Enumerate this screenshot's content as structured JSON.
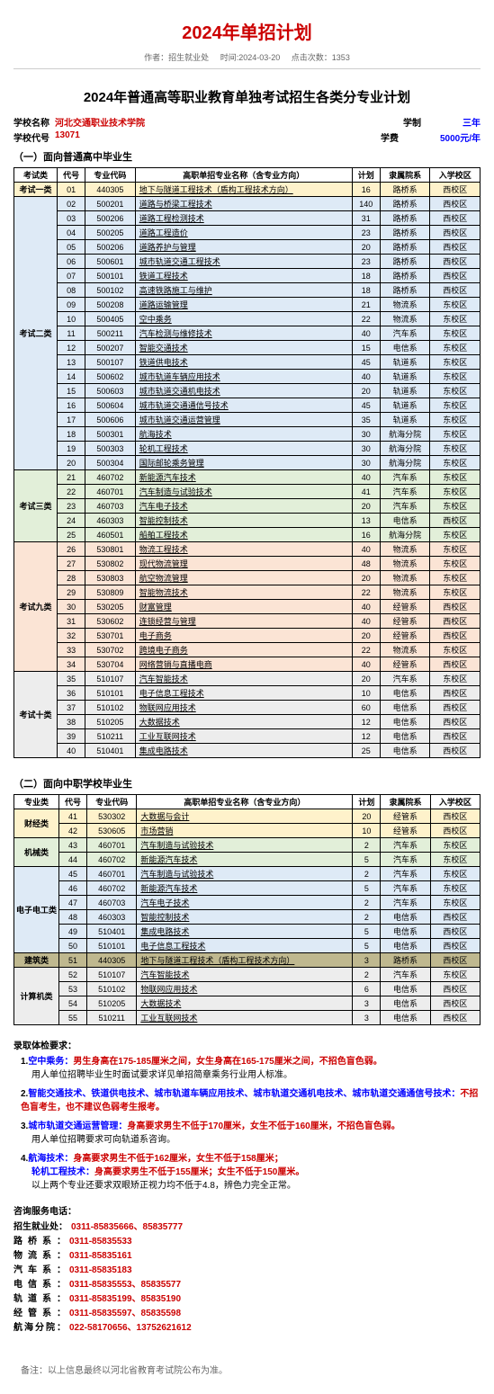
{
  "page_title": "2024年单招计划",
  "meta": {
    "author_lbl": "作者：",
    "author": "招生就业处",
    "time_lbl": "时间:",
    "time": "2024-03-20",
    "hits_lbl": "点击次数：",
    "hits": "1353"
  },
  "subtitle": "2024年普通高等职业教育单独考试招生各类分专业计划",
  "school": {
    "name_lbl": "学校名称",
    "name": "河北交通职业技术学院",
    "code_lbl": "学校代号",
    "code": "13071",
    "years_lbl": "学制",
    "years": "三年",
    "fee_lbl": "学费",
    "fee": "5000元/年"
  },
  "section1_title": "（一）面向普通高中毕业生",
  "section2_title": "（二）面向中职学校毕业生",
  "headers1": [
    "考试类",
    "代号",
    "专业代码",
    "高职单招专业名称（含专业方向）",
    "计划",
    "隶属院系",
    "入学校区"
  ],
  "headers2": [
    "专业类",
    "代号",
    "专业代码",
    "高职单招专业名称（含专业方向）",
    "计划",
    "隶属院系",
    "入学校区"
  ],
  "t1": [
    {
      "g": "考试一类",
      "c": "c-yellow",
      "r": [
        [
          "01",
          "440305",
          "地下与隧道工程技术（盾构工程技术方向）",
          "16",
          "路桥系",
          "西校区"
        ]
      ]
    },
    {
      "g": "考试二类",
      "c": "c-blue",
      "r": [
        [
          "02",
          "500201",
          "道路与桥梁工程技术",
          "140",
          "路桥系",
          "西校区"
        ],
        [
          "03",
          "500206",
          "道路工程检测技术",
          "31",
          "路桥系",
          "西校区"
        ],
        [
          "04",
          "500205",
          "道路工程造价",
          "23",
          "路桥系",
          "西校区"
        ],
        [
          "05",
          "500206",
          "道路养护与管理",
          "20",
          "路桥系",
          "西校区"
        ],
        [
          "06",
          "500601",
          "城市轨道交通工程技术",
          "23",
          "路桥系",
          "西校区"
        ],
        [
          "07",
          "500101",
          "铁道工程技术",
          "18",
          "路桥系",
          "西校区"
        ],
        [
          "08",
          "500102",
          "高速铁路施工与维护",
          "18",
          "路桥系",
          "西校区"
        ],
        [
          "09",
          "500208",
          "道路运输管理",
          "21",
          "物流系",
          "东校区"
        ],
        [
          "10",
          "500405",
          "空中乘务",
          "22",
          "物流系",
          "东校区"
        ],
        [
          "11",
          "500211",
          "汽车检测与维修技术",
          "40",
          "汽车系",
          "东校区"
        ],
        [
          "12",
          "500207",
          "智能交通技术",
          "15",
          "电信系",
          "东校区"
        ],
        [
          "13",
          "500107",
          "铁道供电技术",
          "45",
          "轨道系",
          "东校区"
        ],
        [
          "14",
          "500602",
          "城市轨道车辆应用技术",
          "40",
          "轨道系",
          "东校区"
        ],
        [
          "15",
          "500603",
          "城市轨道交通机电技术",
          "20",
          "轨道系",
          "东校区"
        ],
        [
          "16",
          "500604",
          "城市轨道交通通信号技术",
          "45",
          "轨道系",
          "东校区"
        ],
        [
          "17",
          "500606",
          "城市轨道交通运营管理",
          "35",
          "轨道系",
          "东校区"
        ],
        [
          "18",
          "500301",
          "航海技术",
          "30",
          "航海分院",
          "东校区"
        ],
        [
          "19",
          "500303",
          "轮机工程技术",
          "30",
          "航海分院",
          "东校区"
        ],
        [
          "20",
          "500304",
          "国际邮轮乘务管理",
          "30",
          "航海分院",
          "东校区"
        ]
      ]
    },
    {
      "g": "考试三类",
      "c": "c-green",
      "r": [
        [
          "21",
          "460702",
          "新能源汽车技术",
          "40",
          "汽车系",
          "东校区"
        ],
        [
          "22",
          "460701",
          "汽车制造与试验技术",
          "41",
          "汽车系",
          "东校区"
        ],
        [
          "23",
          "460703",
          "汽车电子技术",
          "20",
          "汽车系",
          "东校区"
        ],
        [
          "24",
          "460303",
          "智能控制技术",
          "13",
          "电信系",
          "西校区"
        ],
        [
          "25",
          "460501",
          "船舶工程技术",
          "16",
          "航海分院",
          "东校区"
        ]
      ]
    },
    {
      "g": "考试九类",
      "c": "c-pink",
      "r": [
        [
          "26",
          "530801",
          "物流工程技术",
          "40",
          "物流系",
          "东校区"
        ],
        [
          "27",
          "530802",
          "现代物流管理",
          "48",
          "物流系",
          "东校区"
        ],
        [
          "28",
          "530803",
          "航空物流管理",
          "20",
          "物流系",
          "东校区"
        ],
        [
          "29",
          "530809",
          "智能物流技术",
          "22",
          "物流系",
          "东校区"
        ],
        [
          "30",
          "530205",
          "财富管理",
          "40",
          "经管系",
          "西校区"
        ],
        [
          "31",
          "530602",
          "连锁经营与管理",
          "40",
          "经管系",
          "西校区"
        ],
        [
          "32",
          "530701",
          "电子商务",
          "20",
          "经管系",
          "西校区"
        ],
        [
          "33",
          "530702",
          "跨境电子商务",
          "22",
          "物流系",
          "东校区"
        ],
        [
          "34",
          "530704",
          "网络营销与直播电商",
          "40",
          "经管系",
          "西校区"
        ]
      ]
    },
    {
      "g": "考试十类",
      "c": "c-gray",
      "r": [
        [
          "35",
          "510107",
          "汽车智能技术",
          "20",
          "汽车系",
          "东校区"
        ],
        [
          "36",
          "510101",
          "电子信息工程技术",
          "10",
          "电信系",
          "西校区"
        ],
        [
          "37",
          "510102",
          "物联网应用技术",
          "60",
          "电信系",
          "西校区"
        ],
        [
          "38",
          "510205",
          "大数据技术",
          "12",
          "电信系",
          "西校区"
        ],
        [
          "39",
          "510211",
          "工业互联网技术",
          "12",
          "电信系",
          "西校区"
        ],
        [
          "40",
          "510401",
          "集成电路技术",
          "25",
          "电信系",
          "西校区"
        ]
      ]
    }
  ],
  "t2": [
    {
      "g": "财经类",
      "c": "c-yellow",
      "r": [
        [
          "41",
          "530302",
          "大数据与会计",
          "20",
          "经管系",
          "西校区"
        ],
        [
          "42",
          "530605",
          "市场营销",
          "10",
          "经管系",
          "西校区"
        ]
      ]
    },
    {
      "g": "机械类",
      "c": "c-green",
      "r": [
        [
          "43",
          "460701",
          "汽车制造与试验技术",
          "2",
          "汽车系",
          "东校区"
        ],
        [
          "44",
          "460702",
          "新能源汽车技术",
          "5",
          "汽车系",
          "东校区"
        ]
      ]
    },
    {
      "g": "电子电工类",
      "c": "c-blue",
      "r": [
        [
          "45",
          "460701",
          "汽车制造与试验技术",
          "2",
          "汽车系",
          "东校区"
        ],
        [
          "46",
          "460702",
          "新能源汽车技术",
          "5",
          "汽车系",
          "东校区"
        ],
        [
          "47",
          "460703",
          "汽车电子技术",
          "2",
          "汽车系",
          "东校区"
        ],
        [
          "48",
          "460303",
          "智能控制技术",
          "2",
          "电信系",
          "西校区"
        ],
        [
          "49",
          "510401",
          "集成电路技术",
          "5",
          "电信系",
          "西校区"
        ],
        [
          "50",
          "510101",
          "电子信息工程技术",
          "5",
          "电信系",
          "西校区"
        ]
      ]
    },
    {
      "g": "建筑类",
      "c": "c-olive",
      "r": [
        [
          "51",
          "440305",
          "地下与隧道工程技术（盾构工程技术方向）",
          "3",
          "路桥系",
          "西校区"
        ]
      ]
    },
    {
      "g": "计算机类",
      "c": "c-gray",
      "r": [
        [
          "52",
          "510107",
          "汽车智能技术",
          "2",
          "汽车系",
          "东校区"
        ],
        [
          "53",
          "510102",
          "物联网应用技术",
          "6",
          "电信系",
          "西校区"
        ],
        [
          "54",
          "510205",
          "大数据技术",
          "3",
          "电信系",
          "西校区"
        ],
        [
          "55",
          "510211",
          "工业互联网技术",
          "3",
          "电信系",
          "西校区"
        ]
      ]
    }
  ],
  "req_title": "录取体检要求：",
  "req": [
    {
      "n": "1.",
      "pre": "空中乘务：",
      "red": "男生身高在175-185厘米之间，女生身高在165-175厘米之间，不招色盲色弱。",
      "post": "用人单位招聘毕业生时面试要求详见单招简章乘务行业用人标准。"
    },
    {
      "n": "2.",
      "pre": "智能交通技术、铁道供电技术、城市轨道车辆应用技术、城市轨道交通机电技术、城市轨道交通通信号技术：",
      "red": "不招色盲考生，也不建议色弱考生报考。",
      "post": ""
    },
    {
      "n": "3.",
      "pre": "城市轨道交通运营管理：",
      "red": "身高要求男生不低于170厘米，女生不低于160厘米，不招色盲色弱。",
      "post": "用人单位招聘要求可向轨道系咨询。"
    },
    {
      "n": "4.",
      "pre": "航海技术：",
      "red": "身高要求男生不低于162厘米，女生不低于158厘米；",
      "post": "",
      "extra_lbl": "轮机工程技术：",
      "extra_red": "身高要求男生不低于155厘米；女生不低于150厘米。",
      "tail": "以上两个专业还要求双眼矫正视力均不低于4.8，辨色力完全正常。"
    }
  ],
  "contact_title": "咨询服务电话：",
  "contacts": [
    {
      "l": "招生就业处：",
      "p": "0311-85835666、85835777"
    },
    {
      "l": "路桥系：",
      "p": "0311-85835533"
    },
    {
      "l": "物流系：",
      "p": "0311-85835161"
    },
    {
      "l": "汽车系：",
      "p": "0311-85835183"
    },
    {
      "l": "电信系：",
      "p": "0311-85835553、85835577"
    },
    {
      "l": "轨道系：",
      "p": "0311-85835199、85835190"
    },
    {
      "l": "经管系：",
      "p": "0311-85835597、85835598"
    },
    {
      "l": "航海分院：",
      "p": "022-58170656、13752621612"
    }
  ],
  "footnote": "备注：以上信息最终以河北省教育考试院公布为准。"
}
